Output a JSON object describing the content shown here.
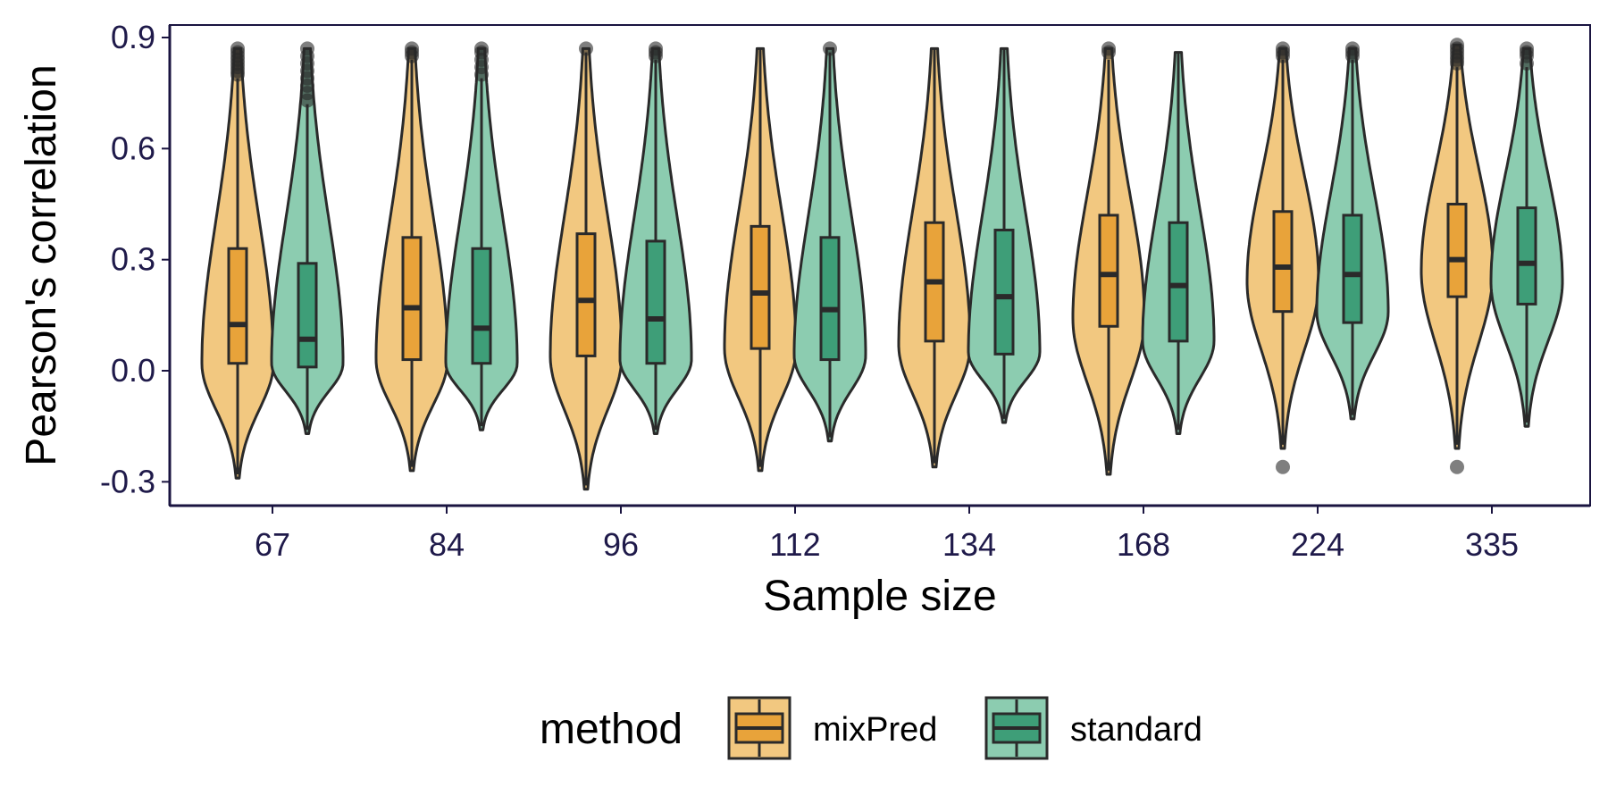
{
  "chart_data": {
    "type": "violin",
    "xlabel": "Sample size",
    "ylabel": "Pearson's correlation",
    "categories": [
      "67",
      "84",
      "96",
      "112",
      "134",
      "168",
      "224",
      "335"
    ],
    "ylim": [
      -0.35,
      0.92
    ],
    "yticks": [
      -0.3,
      0.0,
      0.3,
      0.6,
      0.9
    ],
    "ytick_labels": [
      "-0.3",
      "0.0",
      "0.3",
      "0.6",
      "0.9"
    ],
    "grid": false,
    "legend": {
      "title": "method",
      "position": "bottom",
      "entries": [
        "mixPred",
        "standard"
      ]
    },
    "colors": {
      "mixPred_box": "#E8A33A",
      "mixPred_violin": "#F2C880",
      "standard_box": "#3E9E78",
      "standard_violin": "#8CCCB0",
      "outline": "#2a2a2a",
      "axis": "#1a1440"
    },
    "series": [
      {
        "name": "mixPred",
        "groups": [
          {
            "min": -0.28,
            "q1": 0.02,
            "median": 0.125,
            "q3": 0.33,
            "max": 0.79,
            "mode": 0.02,
            "outliers_high": [
              0.8,
              0.81,
              0.82,
              0.83,
              0.84,
              0.85,
              0.86,
              0.87
            ],
            "outliers_low": []
          },
          {
            "min": -0.26,
            "q1": 0.03,
            "median": 0.17,
            "q3": 0.36,
            "max": 0.84,
            "mode": 0.03,
            "outliers_high": [
              0.85,
              0.86,
              0.87
            ],
            "outliers_low": []
          },
          {
            "min": -0.31,
            "q1": 0.04,
            "median": 0.19,
            "q3": 0.37,
            "max": 0.86,
            "mode": 0.04,
            "outliers_high": [
              0.87
            ],
            "outliers_low": []
          },
          {
            "min": -0.26,
            "q1": 0.06,
            "median": 0.21,
            "q3": 0.39,
            "max": 0.87,
            "mode": 0.06,
            "outliers_high": [],
            "outliers_low": []
          },
          {
            "min": -0.25,
            "q1": 0.08,
            "median": 0.24,
            "q3": 0.4,
            "max": 0.87,
            "mode": 0.07,
            "outliers_high": [],
            "outliers_low": []
          },
          {
            "min": -0.27,
            "q1": 0.12,
            "median": 0.26,
            "q3": 0.42,
            "max": 0.84,
            "mode": 0.14,
            "outliers_high": [
              0.86,
              0.87
            ],
            "outliers_low": []
          },
          {
            "min": -0.2,
            "q1": 0.16,
            "median": 0.28,
            "q3": 0.43,
            "max": 0.84,
            "mode": 0.24,
            "outliers_high": [
              0.85,
              0.86,
              0.87
            ],
            "outliers_low": [
              -0.26
            ]
          },
          {
            "min": -0.2,
            "q1": 0.2,
            "median": 0.3,
            "q3": 0.45,
            "max": 0.82,
            "mode": 0.27,
            "outliers_high": [
              0.83,
              0.84,
              0.85,
              0.86,
              0.87,
              0.88
            ],
            "outliers_low": [
              -0.26
            ]
          }
        ]
      },
      {
        "name": "standard",
        "groups": [
          {
            "min": -0.16,
            "q1": 0.01,
            "median": 0.085,
            "q3": 0.29,
            "max": 0.72,
            "mode": 0.02,
            "outliers_high": [
              0.73,
              0.75,
              0.77,
              0.79,
              0.81,
              0.83,
              0.85,
              0.87
            ],
            "outliers_low": []
          },
          {
            "min": -0.15,
            "q1": 0.02,
            "median": 0.115,
            "q3": 0.33,
            "max": 0.79,
            "mode": 0.02,
            "outliers_high": [
              0.8,
              0.82,
              0.84,
              0.86,
              0.87
            ],
            "outliers_low": []
          },
          {
            "min": -0.16,
            "q1": 0.02,
            "median": 0.14,
            "q3": 0.35,
            "max": 0.84,
            "mode": 0.03,
            "outliers_high": [
              0.85,
              0.86,
              0.87
            ],
            "outliers_low": []
          },
          {
            "min": -0.18,
            "q1": 0.03,
            "median": 0.165,
            "q3": 0.36,
            "max": 0.86,
            "mode": 0.04,
            "outliers_high": [
              0.87
            ],
            "outliers_low": []
          },
          {
            "min": -0.13,
            "q1": 0.045,
            "median": 0.2,
            "q3": 0.38,
            "max": 0.87,
            "mode": 0.05,
            "outliers_high": [],
            "outliers_low": []
          },
          {
            "min": -0.16,
            "q1": 0.08,
            "median": 0.23,
            "q3": 0.4,
            "max": 0.86,
            "mode": 0.08,
            "outliers_high": [],
            "outliers_low": []
          },
          {
            "min": -0.12,
            "q1": 0.13,
            "median": 0.26,
            "q3": 0.42,
            "max": 0.84,
            "mode": 0.16,
            "outliers_high": [
              0.85,
              0.86,
              0.87
            ],
            "outliers_low": []
          },
          {
            "min": -0.14,
            "q1": 0.18,
            "median": 0.29,
            "q3": 0.44,
            "max": 0.82,
            "mode": 0.24,
            "outliers_high": [
              0.83,
              0.85,
              0.86,
              0.87
            ],
            "outliers_low": []
          }
        ]
      }
    ]
  }
}
